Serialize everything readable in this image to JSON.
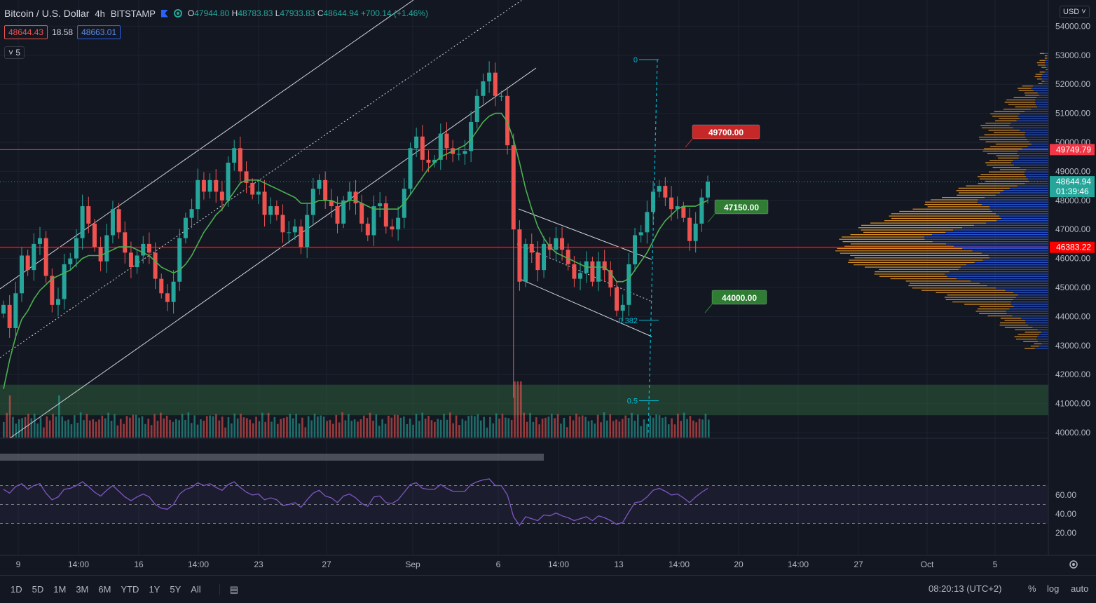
{
  "legend": {
    "symbol": "Bitcoin / U.S. Dollar",
    "interval": "4h",
    "exchange": "BITSTAMP",
    "open_label": "O",
    "open": "47944.80",
    "high_label": "H",
    "high": "48783.83",
    "low_label": "L",
    "low": "47933.83",
    "close_label": "C",
    "close": "48644.94",
    "change": "+700.14 (+1.46%)"
  },
  "quotes": {
    "bid": "48644.43",
    "spread": "18.58",
    "ask": "48663.01"
  },
  "studies_badge": "5",
  "currency_button": "USD",
  "toolbar": {
    "ranges": [
      "1D",
      "5D",
      "1M",
      "3M",
      "6M",
      "YTD",
      "1Y",
      "5Y",
      "All"
    ],
    "clock": "08:20:13 (UTC+2)",
    "percent": "%",
    "log": "log",
    "auto": "auto"
  },
  "colors": {
    "background": "#131722",
    "up": "#26a69a",
    "down": "#ef5350",
    "ma": "#4caf50",
    "rsi": "#7e57c2",
    "fib": "#00bcd4",
    "profile_blue": "#2962ff",
    "profile_orange": "#ffa726"
  },
  "icons": [
    "flag-icon",
    "eye-icon",
    "calendar-range-icon",
    "settings-gear-icon"
  ],
  "chart_data": {
    "type": "candlestick",
    "interval": "4h",
    "y_axis_ticks": [
      "40000.00",
      "41000.00",
      "42000.00",
      "43000.00",
      "44000.00",
      "45000.00",
      "46000.00",
      "47000.00",
      "48000.00",
      "49000.00",
      "50000.00",
      "51000.00",
      "52000.00",
      "53000.00",
      "54000.00"
    ],
    "ylim": [
      39700,
      54500
    ],
    "x_axis_ticks": [
      "9",
      "14:00",
      "16",
      "14:00",
      "23",
      "27",
      "Sep",
      "6",
      "14:00",
      "13",
      "14:00",
      "20",
      "14:00",
      "27",
      "Oct",
      "5"
    ],
    "price_path": [
      44400,
      43600,
      44800,
      46100,
      45600,
      46500,
      46700,
      45400,
      44400,
      44600,
      45800,
      46000,
      46700,
      47800,
      47200,
      46400,
      45900,
      46800,
      47700,
      46900,
      46200,
      45700,
      46100,
      46500,
      46200,
      45300,
      44800,
      44500,
      45200,
      46700,
      47400,
      47700,
      48700,
      48300,
      48700,
      48300,
      48000,
      49300,
      49800,
      49000,
      48600,
      48200,
      48300,
      47500,
      47800,
      47500,
      46900,
      46900,
      47100,
      46400,
      47500,
      48400,
      48700,
      48000,
      47800,
      47200,
      48000,
      48300,
      47900,
      47200,
      46800,
      47800,
      47900,
      47100,
      47000,
      47400,
      48400,
      49800,
      50200,
      49400,
      49300,
      49400,
      50300,
      49800,
      49600,
      49600,
      49700,
      50700,
      51600,
      52100,
      52400,
      51600,
      51600,
      49900,
      47000,
      45200,
      46500,
      46200,
      45600,
      46500,
      46300,
      46700,
      46300,
      45800,
      45300,
      45500,
      45900,
      45200,
      45900,
      45600,
      45000,
      44200,
      44400,
      45800,
      46800,
      46900,
      47600,
      48300,
      48500,
      48100,
      47700,
      47800,
      47400,
      46600,
      47200,
      48100,
      48645
    ],
    "moving_average_values": [
      41500,
      42500,
      43300,
      43900,
      44200,
      44600,
      44900,
      45100,
      45300,
      45400,
      45500,
      45600,
      45800,
      46000,
      46100,
      46100,
      46100,
      46200,
      46300,
      46400,
      46400,
      46400,
      46300,
      46200,
      46100,
      45900,
      45700,
      45600,
      45500,
      45600,
      45800,
      46100,
      46500,
      46900,
      47200,
      47500,
      47700,
      48000,
      48300,
      48600,
      48700,
      48700,
      48700,
      48600,
      48500,
      48400,
      48300,
      48200,
      48100,
      47900,
      47900,
      47900,
      48000,
      48000,
      48000,
      47900,
      47900,
      48000,
      48000,
      47900,
      47800,
      47700,
      47700,
      47700,
      47700,
      47700,
      47900,
      48200,
      48500,
      48800,
      49100,
      49300,
      49500,
      49600,
      49700,
      49800,
      49900,
      50100,
      50400,
      50700,
      50900,
      51000,
      51000,
      50700,
      50100,
      49300,
      48400,
      47700,
      47100,
      46700,
      46400,
      46200,
      46100,
      46000,
      45900,
      45800,
      45700,
      45700,
      45700,
      45700,
      45500,
      45200,
      45200,
      45300,
      45600,
      45900,
      46200,
      46600,
      47000,
      47300,
      47500,
      47700,
      47800,
      47800,
      47800,
      47900,
      48000
    ],
    "rsi_values": [
      66,
      62,
      69,
      72,
      66,
      70,
      72,
      62,
      55,
      58,
      66,
      67,
      70,
      74,
      69,
      63,
      59,
      65,
      70,
      64,
      58,
      54,
      58,
      61,
      58,
      50,
      46,
      45,
      50,
      61,
      66,
      68,
      73,
      70,
      72,
      68,
      65,
      71,
      74,
      68,
      63,
      60,
      61,
      55,
      57,
      55,
      49,
      50,
      52,
      47,
      55,
      62,
      65,
      59,
      57,
      52,
      59,
      61,
      57,
      51,
      48,
      58,
      59,
      52,
      51,
      55,
      63,
      71,
      73,
      67,
      66,
      66,
      71,
      67,
      64,
      64,
      64,
      71,
      74,
      76,
      77,
      70,
      70,
      60,
      37,
      28,
      37,
      35,
      33,
      39,
      38,
      41,
      38,
      36,
      33,
      35,
      37,
      33,
      38,
      36,
      33,
      29,
      31,
      42,
      52,
      53,
      58,
      65,
      67,
      64,
      60,
      61,
      57,
      52,
      58,
      63,
      67
    ],
    "rsi_axis_ticks": [
      "20.00",
      "40.00",
      "60.00"
    ],
    "rsi_levels": [
      30,
      50,
      70
    ],
    "horizontal_lines": [
      {
        "price": 49749.79,
        "color": "#f23645"
      },
      {
        "price": 46383.22,
        "color": "#ff0000"
      }
    ],
    "axis_price_labels": [
      {
        "text": "49749.79",
        "price": 49749.79,
        "color": "#f23645"
      },
      {
        "text": "48644.94",
        "price": 48644.94,
        "color": "#26a69a",
        "countdown": "01:39:46"
      },
      {
        "text": "46383.22",
        "price": 46383.22,
        "color": "#ff0000"
      }
    ],
    "price_notes": [
      {
        "text": "49700.00",
        "color": "#c62828"
      },
      {
        "text": "47150.00",
        "color": "#2e7d32"
      },
      {
        "text": "44000.00",
        "color": "#2e7d32"
      }
    ],
    "fib_levels": [
      {
        "label": "0",
        "price": 52850
      },
      {
        "label": "0.382",
        "price": 43870
      },
      {
        "label": "0.5",
        "price": 41100
      }
    ],
    "support_zone": {
      "from": 40600,
      "to": 41650
    },
    "volume_profile_range": [
      42900,
      53100
    ],
    "volume_profile_poc": 46383.22
  }
}
